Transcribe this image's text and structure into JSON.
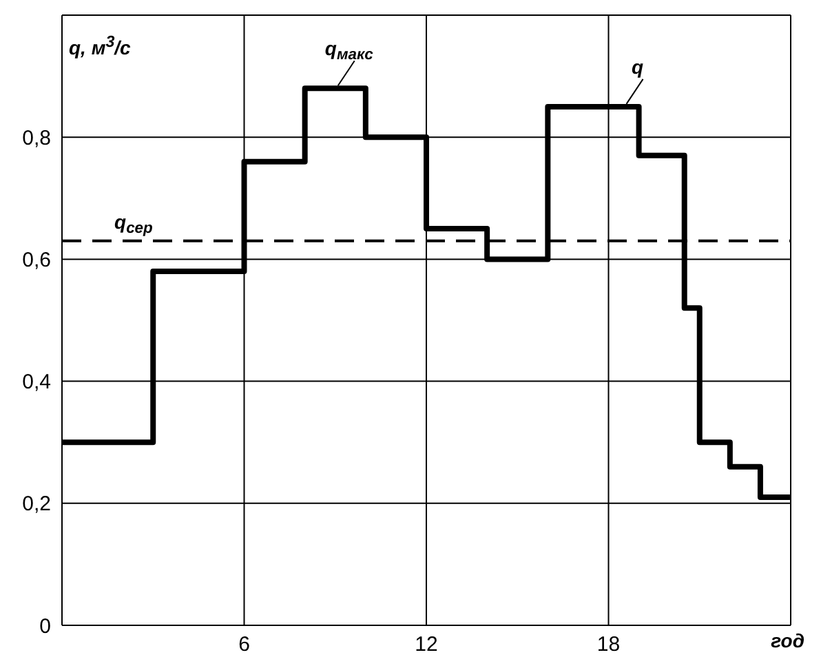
{
  "chart_data": {
    "type": "step",
    "xlabel": "год",
    "ylabel": "q, м$^{3}$/с",
    "x": [
      0,
      3,
      6,
      8,
      10,
      12,
      14,
      16,
      19,
      20.5,
      21,
      22,
      23,
      24
    ],
    "series": [
      {
        "color": "#000000",
        "values": [
          0.3,
          0.58,
          0.76,
          0.88,
          0.8,
          0.65,
          0.6,
          0.85,
          0.77,
          0.52,
          0.3,
          0.26,
          0.21,
          0.21
        ]
      }
    ],
    "xlim": [
      0,
      24
    ],
    "xticks": [
      {
        "value": 0,
        "label": null
      },
      6,
      12,
      18,
      {
        "value": 24,
        "label": null
      }
    ],
    "ylim": [
      0,
      1
    ],
    "yticks": [
      0,
      {
        "value": 0.2,
        "label": "0,2"
      },
      {
        "value": 0.4,
        "label": "0,4"
      },
      {
        "value": 0.6,
        "label": "0,6"
      },
      {
        "value": 0.8,
        "label": "0,8"
      }
    ],
    "ref_lines": [
      {
        "axis": "y",
        "value": 0.63,
        "label": "q$_{сер}$",
        "color": "#000000",
        "line_style": "dashed"
      }
    ],
    "annotations": [
      {
        "text": "q$_{макс}$",
        "x": 9,
        "y": 0.88
      },
      {
        "text": "q",
        "x": 18.5,
        "y": 0.85
      }
    ],
    "grid": true,
    "marker": "none",
    "line_style": "solid"
  }
}
